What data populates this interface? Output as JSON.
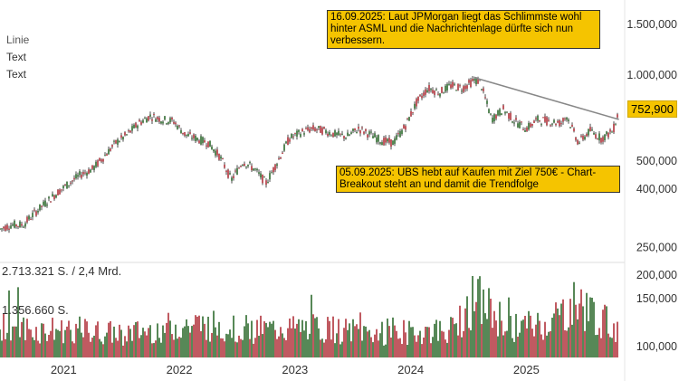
{
  "menu": [
    "Linie",
    "Text",
    "Text"
  ],
  "annotations": [
    {
      "text": "16.09.2025: Laut JPMorgan liegt das Schlimmste wohl hinter ASML und die Nachrichtenlage dürfte sich nun verbessern.",
      "color": "#f5c400"
    },
    {
      "text": "05.09.2025: UBS hebt auf Kaufen mit Ziel 750€ - Chart-Breakout steht an und damit die Trendfolge",
      "color": "#f5c400"
    }
  ],
  "volume_labels": [
    "2.713.321 S. / 2,4 Mrd.",
    "1.356.660 S."
  ],
  "last_price": "752,900",
  "colors": {
    "up": "#2e6b2e",
    "down": "#b0323a",
    "candle": "#4a4a4a",
    "trendline": "#888888",
    "accent": "#f5c400"
  },
  "chart_data": {
    "type": "line",
    "price_axis": {
      "scale": "log",
      "ticks": [
        1500000,
        1000000,
        500000,
        400000,
        250000,
        200000,
        150000,
        100000
      ],
      "tick_labels": [
        "1.500,000",
        "1.000,000",
        "500,000",
        "400,000",
        "250,000",
        "200,000",
        "150,000",
        "100,000"
      ]
    },
    "x_ticks": [
      "2021",
      "2022",
      "2023",
      "2024",
      "2025"
    ],
    "x_tick_positions": [
      2021,
      2022,
      2023,
      2024,
      2025
    ],
    "xlim": [
      2020.45,
      2025.85
    ],
    "price_series": {
      "x": [
        2020.45,
        2020.55,
        2020.65,
        2020.75,
        2020.85,
        2020.95,
        2021.05,
        2021.15,
        2021.25,
        2021.35,
        2021.45,
        2021.55,
        2021.65,
        2021.75,
        2021.85,
        2021.95,
        2022.05,
        2022.15,
        2022.25,
        2022.35,
        2022.45,
        2022.55,
        2022.65,
        2022.75,
        2022.85,
        2022.95,
        2023.05,
        2023.15,
        2023.25,
        2023.35,
        2023.45,
        2023.55,
        2023.65,
        2023.75,
        2023.85,
        2023.95,
        2024.05,
        2024.15,
        2024.25,
        2024.35,
        2024.45,
        2024.55,
        2024.6,
        2024.7,
        2024.8,
        2024.9,
        2025.0,
        2025.1,
        2025.2,
        2025.3,
        2025.35,
        2025.45,
        2025.55,
        2025.65,
        2025.75,
        2025.8
      ],
      "y": [
        290000,
        300000,
        300000,
        330000,
        360000,
        390000,
        420000,
        450000,
        470000,
        520000,
        580000,
        620000,
        680000,
        720000,
        700000,
        690000,
        620000,
        600000,
        580000,
        520000,
        430000,
        500000,
        470000,
        420000,
        500000,
        600000,
        630000,
        650000,
        640000,
        620000,
        610000,
        650000,
        620000,
        590000,
        580000,
        660000,
        800000,
        900000,
        870000,
        920000,
        900000,
        960000,
        950000,
        700000,
        760000,
        690000,
        650000,
        700000,
        690000,
        680000,
        720000,
        580000,
        640000,
        600000,
        640000,
        752900
      ]
    },
    "trendline": {
      "x": [
        2024.55,
        2025.8
      ],
      "y": [
        980000,
        700000
      ]
    },
    "volume_axis": {
      "ticks": [
        150000,
        100000
      ],
      "tick_labels": [
        "150.000",
        "100.000"
      ],
      "max": 2713321
    },
    "volume_series": {
      "x": [
        2020.45,
        2020.75,
        2021.05,
        2021.35,
        2021.65,
        2021.95,
        2022.25,
        2022.55,
        2022.85,
        2023.15,
        2023.45,
        2023.75,
        2024.05,
        2024.35,
        2024.55,
        2024.85,
        2025.15,
        2025.45,
        2025.8
      ],
      "y": [
        1600000,
        1200000,
        1300000,
        1100000,
        1150000,
        1400000,
        1500000,
        1300000,
        1250000,
        1350000,
        1200000,
        1100000,
        1150000,
        1250000,
        2713321,
        1400000,
        1500000,
        2450000,
        1200000
      ]
    }
  }
}
